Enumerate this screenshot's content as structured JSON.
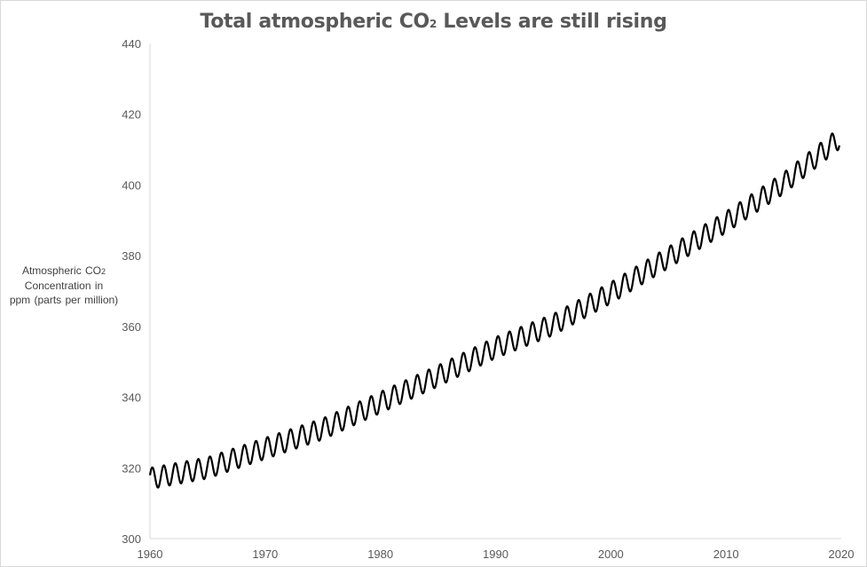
{
  "chart_data": {
    "type": "line",
    "title": "Total atmospheric CO",
    "title_subscript": "2",
    "title_suffix": " Levels are still rising",
    "ylabel": {
      "line1": "Atmospheric CO",
      "line1_subscript": "2",
      "line2": "Concentration in",
      "line3": "ppm (parts per million)"
    },
    "xlabel": "",
    "xlim": [
      1960,
      2020
    ],
    "ylim": [
      300,
      440
    ],
    "x_ticks": [
      "1960",
      "1970",
      "1980",
      "1990",
      "2000",
      "2010",
      "2020"
    ],
    "y_ticks": [
      "300",
      "320",
      "340",
      "360",
      "380",
      "400",
      "420",
      "440"
    ],
    "grid": false,
    "line_color": "#000000",
    "series": [
      {
        "name": "",
        "data_range": [
          1960.0,
          2019.85
        ],
        "annual_points": {
          "x": [
            1960,
            1965,
            1970,
            1975,
            1980,
            1985,
            1990,
            1995,
            2000,
            2005,
            2010,
            2015,
            2019
          ],
          "y": [
            317,
            320,
            325.5,
            331,
            338.5,
            346,
            354,
            360.5,
            369.5,
            379.5,
            389.5,
            400.5,
            411
          ]
        },
        "seasonal_amplitude_ppm": 3
      }
    ]
  }
}
